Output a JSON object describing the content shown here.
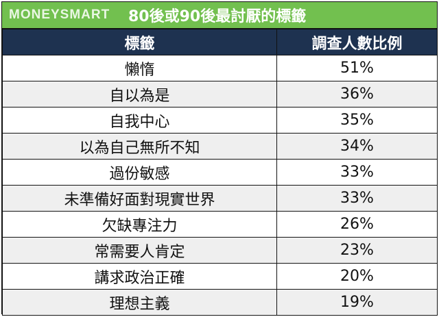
{
  "header": {
    "brand": "MONEYSMART",
    "title": "80後或90後最討厭的標籤"
  },
  "colors": {
    "banner": "#72c04f",
    "header_row": "#1e3250",
    "alt_row": "#efefef"
  },
  "chart_data": {
    "type": "table",
    "title": "80後或90後最討厭的標籤",
    "columns": [
      "標籤",
      "調查人數比例"
    ],
    "rows": [
      [
        "懶惰",
        "51%"
      ],
      [
        "自以為是",
        "36%"
      ],
      [
        "自我中心",
        "35%"
      ],
      [
        "以為自己無所不知",
        "34%"
      ],
      [
        "過份敏感",
        "33%"
      ],
      [
        "未準備好面對現實世界",
        "33%"
      ],
      [
        "欠缺專注力",
        "26%"
      ],
      [
        "常需要人肯定",
        "23%"
      ],
      [
        "講求政治正確",
        "20%"
      ],
      [
        "理想主義",
        "19%"
      ]
    ]
  }
}
